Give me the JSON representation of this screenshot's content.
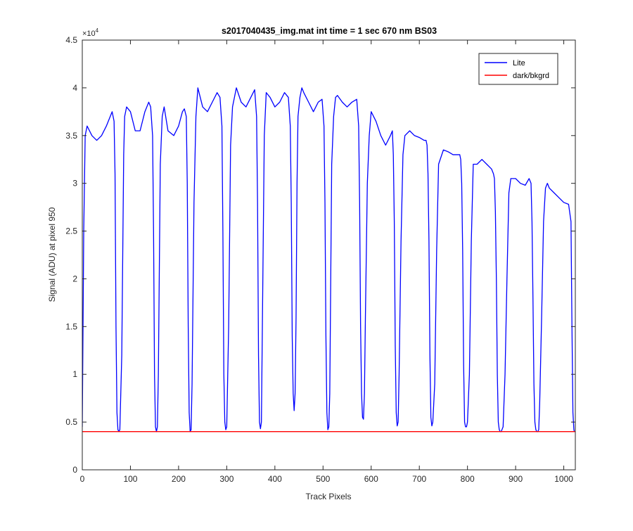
{
  "chart_data": {
    "type": "line",
    "title": "s2017040435_img.mat int time = 1 sec  670 nm BS03",
    "xlabel": "Track Pixels",
    "ylabel": "Signal (ADU) at pixel 950",
    "y_exponent_label": "×10",
    "y_exponent_power": "4",
    "xlim": [
      0,
      1024
    ],
    "ylim": [
      0,
      4.5
    ],
    "y_scale_multiplier": 10000,
    "x_ticks": [
      0,
      100,
      200,
      300,
      400,
      500,
      600,
      700,
      800,
      900,
      1000
    ],
    "x_tick_labels": [
      "0",
      "100",
      "200",
      "300",
      "400",
      "500",
      "600",
      "700",
      "800",
      "900",
      "1000"
    ],
    "y_ticks": [
      0,
      0.5,
      1,
      1.5,
      2,
      2.5,
      3,
      3.5,
      4,
      4.5
    ],
    "y_tick_labels": [
      "0",
      "0.5",
      "1",
      "1.5",
      "2",
      "2.5",
      "3",
      "3.5",
      "4",
      "4.5"
    ],
    "grid": false,
    "legend_position": "top-right",
    "series": [
      {
        "name": "Lite",
        "color": "#0000ff",
        "x": [
          0,
          3,
          6,
          10,
          20,
          30,
          40,
          50,
          58,
          62,
          66,
          68,
          70,
          72,
          74,
          76,
          78,
          82,
          86,
          88,
          92,
          100,
          110,
          120,
          130,
          138,
          142,
          146,
          148,
          150,
          152,
          154,
          156,
          158,
          162,
          166,
          170,
          178,
          190,
          200,
          208,
          212,
          216,
          218,
          220,
          222,
          224,
          226,
          228,
          232,
          236,
          240,
          250,
          260,
          270,
          280,
          286,
          290,
          292,
          294,
          296,
          298,
          300,
          304,
          308,
          312,
          320,
          330,
          340,
          350,
          358,
          362,
          364,
          366,
          368,
          370,
          372,
          374,
          378,
          382,
          390,
          400,
          410,
          420,
          428,
          432,
          434,
          436,
          438,
          440,
          442,
          444,
          446,
          448,
          452,
          456,
          460,
          470,
          480,
          490,
          498,
          502,
          504,
          506,
          508,
          510,
          512,
          514,
          516,
          518,
          522,
          526,
          530,
          540,
          550,
          560,
          570,
          574,
          576,
          578,
          580,
          582,
          584,
          586,
          588,
          592,
          596,
          600,
          610,
          620,
          630,
          640,
          644,
          646,
          648,
          650,
          652,
          654,
          656,
          658,
          662,
          666,
          670,
          680,
          690,
          700,
          710,
          714,
          716,
          718,
          720,
          722,
          724,
          726,
          728,
          732,
          736,
          740,
          750,
          760,
          770,
          780,
          784,
          786,
          788,
          790,
          792,
          794,
          796,
          798,
          800,
          804,
          808,
          812,
          820,
          830,
          840,
          850,
          854,
          856,
          858,
          860,
          862,
          864,
          866,
          868,
          870,
          874,
          878,
          882,
          886,
          890,
          900,
          910,
          920,
          928,
          932,
          934,
          936,
          938,
          940,
          942,
          944,
          946,
          948,
          950,
          954,
          958,
          962,
          966,
          970,
          980,
          990,
          1000,
          1010,
          1015,
          1017,
          1019,
          1021,
          1022
        ],
        "y": [
          0.45,
          2.5,
          3.5,
          3.6,
          3.5,
          3.45,
          3.5,
          3.6,
          3.7,
          3.75,
          3.65,
          3.1,
          1.5,
          0.6,
          0.42,
          0.4,
          0.42,
          1.2,
          3.3,
          3.7,
          3.8,
          3.75,
          3.55,
          3.55,
          3.75,
          3.85,
          3.8,
          3.5,
          2.5,
          1.0,
          0.45,
          0.4,
          0.45,
          1.0,
          3.2,
          3.7,
          3.8,
          3.55,
          3.5,
          3.6,
          3.75,
          3.78,
          3.7,
          3.0,
          1.5,
          0.6,
          0.4,
          0.42,
          0.9,
          2.8,
          3.7,
          4.0,
          3.8,
          3.75,
          3.85,
          3.95,
          3.9,
          3.6,
          2.5,
          1.0,
          0.5,
          0.42,
          0.45,
          1.5,
          3.4,
          3.8,
          4.0,
          3.85,
          3.8,
          3.9,
          3.98,
          3.7,
          2.8,
          1.2,
          0.5,
          0.43,
          0.5,
          1.5,
          3.5,
          3.95,
          3.9,
          3.8,
          3.85,
          3.95,
          3.9,
          3.6,
          2.8,
          1.4,
          0.8,
          0.62,
          0.8,
          1.6,
          3.0,
          3.7,
          3.9,
          4.0,
          3.95,
          3.85,
          3.75,
          3.85,
          3.88,
          3.6,
          2.8,
          1.4,
          0.6,
          0.42,
          0.45,
          0.8,
          2.0,
          3.2,
          3.7,
          3.9,
          3.92,
          3.85,
          3.8,
          3.85,
          3.88,
          3.6,
          2.8,
          1.5,
          0.8,
          0.55,
          0.53,
          0.8,
          1.6,
          3.0,
          3.5,
          3.75,
          3.65,
          3.5,
          3.4,
          3.5,
          3.55,
          3.3,
          2.6,
          1.3,
          0.6,
          0.46,
          0.5,
          1.0,
          2.4,
          3.3,
          3.5,
          3.55,
          3.5,
          3.48,
          3.45,
          3.45,
          3.4,
          3.1,
          2.4,
          1.2,
          0.55,
          0.46,
          0.5,
          0.9,
          2.3,
          3.2,
          3.35,
          3.33,
          3.3,
          3.3,
          3.3,
          3.25,
          3.0,
          2.3,
          1.1,
          0.5,
          0.45,
          0.45,
          0.5,
          1.0,
          2.4,
          3.2,
          3.2,
          3.25,
          3.2,
          3.15,
          3.1,
          3.05,
          2.7,
          2.0,
          1.0,
          0.5,
          0.42,
          0.4,
          0.4,
          0.45,
          1.0,
          2.0,
          2.9,
          3.05,
          3.05,
          3.0,
          2.98,
          3.05,
          3.0,
          2.6,
          1.8,
          0.9,
          0.5,
          0.42,
          0.4,
          0.4,
          0.42,
          0.7,
          1.6,
          2.6,
          2.95,
          3.0,
          2.95,
          2.9,
          2.85,
          2.8,
          2.78,
          2.6,
          1.5,
          0.6,
          0.42,
          0.4
        ]
      },
      {
        "name": "dark/bkgrd",
        "color": "#ff0000",
        "x": [
          0,
          1024
        ],
        "y": [
          0.4,
          0.4
        ]
      }
    ]
  }
}
